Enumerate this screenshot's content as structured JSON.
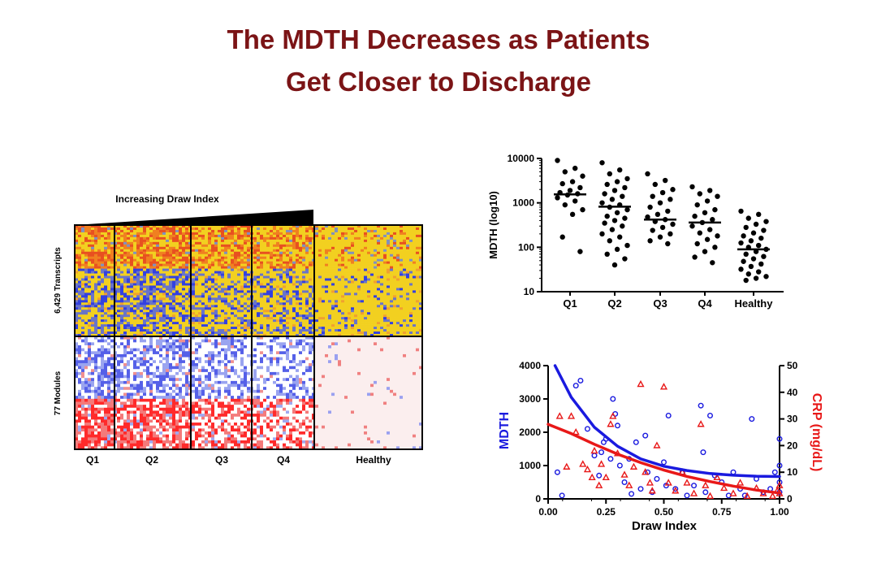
{
  "slide": {
    "title_line1": "The MDTH Decreases as Patients",
    "title_line2": "Get Closer to Discharge",
    "title_color": "#7b1416"
  },
  "heatmap": {
    "header": "Increasing Draw Index",
    "row_groups": [
      "6,429 Transcripts",
      "77 Modules"
    ],
    "column_groups": [
      "Q1",
      "Q2",
      "Q3",
      "Q4",
      "Healthy"
    ],
    "colors": {
      "high": "#ff2a2a",
      "low": "#3340e0",
      "mid_transcripts": "#f2d020",
      "mid_modules": "#ffffff"
    }
  },
  "chart_data": [
    {
      "type": "scatter",
      "ylabel": "MDTH (log10)",
      "yscale": "log",
      "ylim": [
        10,
        10000
      ],
      "yticks": [
        "10",
        "100",
        "1000",
        "10000"
      ],
      "categories": [
        "Q1",
        "Q2",
        "Q3",
        "Q4",
        "Healthy"
      ],
      "medians": [
        1550,
        820,
        420,
        360,
        90
      ],
      "points": [
        [
          9000,
          6000,
          5000,
          4000,
          3000,
          2700,
          2200,
          1900,
          1700,
          1600,
          1500,
          1300,
          1100,
          900,
          700,
          550,
          170,
          80
        ],
        [
          8000,
          5500,
          4500,
          3500,
          3000,
          2600,
          2200,
          1900,
          1600,
          1400,
          1200,
          1000,
          900,
          800,
          700,
          600,
          500,
          450,
          400,
          350,
          300,
          250,
          200,
          170,
          140,
          110,
          90,
          70,
          55,
          40
        ],
        [
          4500,
          3200,
          2600,
          2000,
          1700,
          1400,
          1200,
          1000,
          800,
          650,
          550,
          480,
          420,
          380,
          330,
          280,
          240,
          200,
          170,
          140,
          120
        ],
        [
          2300,
          1900,
          1600,
          1400,
          1100,
          900,
          700,
          600,
          500,
          420,
          360,
          300,
          250,
          210,
          180,
          150,
          120,
          100,
          80,
          60,
          45
        ],
        [
          650,
          550,
          450,
          380,
          330,
          280,
          240,
          210,
          180,
          160,
          140,
          125,
          110,
          100,
          90,
          80,
          70,
          62,
          55,
          48,
          42,
          37,
          32,
          28,
          25,
          22,
          20,
          18
        ]
      ],
      "color": "#000000"
    },
    {
      "type": "scatter",
      "xlabel": "Draw Index",
      "ylabel": "MDTH",
      "ylabel_right": "CRP (mg/dL)",
      "xlim": [
        0,
        1
      ],
      "ylim": [
        0,
        4000
      ],
      "ylim_right": [
        0,
        50
      ],
      "xticks": [
        "0.00",
        "0.25",
        "0.50",
        "0.75",
        "1.00"
      ],
      "yticks": [
        "0",
        "1000",
        "2000",
        "3000",
        "4000"
      ],
      "yticks_right": [
        "0",
        "10",
        "20",
        "30",
        "40",
        "50"
      ],
      "series": [
        {
          "name": "MDTH",
          "color": "#1a1adf",
          "marker": "circle",
          "points": [
            [
              0.04,
              800
            ],
            [
              0.06,
              100
            ],
            [
              0.12,
              3400
            ],
            [
              0.14,
              3550
            ],
            [
              0.17,
              2100
            ],
            [
              0.2,
              1300
            ],
            [
              0.22,
              700
            ],
            [
              0.23,
              1400
            ],
            [
              0.24,
              1700
            ],
            [
              0.25,
              1800
            ],
            [
              0.27,
              1200
            ],
            [
              0.28,
              3000
            ],
            [
              0.29,
              2550
            ],
            [
              0.3,
              2200
            ],
            [
              0.31,
              1000
            ],
            [
              0.33,
              500
            ],
            [
              0.35,
              1200
            ],
            [
              0.36,
              150
            ],
            [
              0.38,
              1700
            ],
            [
              0.4,
              300
            ],
            [
              0.42,
              1900
            ],
            [
              0.43,
              800
            ],
            [
              0.45,
              200
            ],
            [
              0.47,
              600
            ],
            [
              0.5,
              1100
            ],
            [
              0.51,
              400
            ],
            [
              0.52,
              2500
            ],
            [
              0.55,
              300
            ],
            [
              0.58,
              800
            ],
            [
              0.6,
              100
            ],
            [
              0.63,
              400
            ],
            [
              0.66,
              2800
            ],
            [
              0.67,
              1400
            ],
            [
              0.68,
              200
            ],
            [
              0.7,
              2500
            ],
            [
              0.72,
              700
            ],
            [
              0.75,
              500
            ],
            [
              0.78,
              100
            ],
            [
              0.8,
              800
            ],
            [
              0.83,
              300
            ],
            [
              0.85,
              100
            ],
            [
              0.88,
              2400
            ],
            [
              0.9,
              600
            ],
            [
              0.93,
              200
            ],
            [
              0.96,
              300
            ],
            [
              0.98,
              800
            ],
            [
              1.0,
              1800
            ],
            [
              1.0,
              1000
            ],
            [
              1.0,
              500
            ],
            [
              1.0,
              200
            ]
          ]
        },
        {
          "name": "CRP (mg/dL)",
          "color": "#e81818",
          "marker": "triangle",
          "axis": "right",
          "points": [
            [
              0.05,
              31
            ],
            [
              0.08,
              12
            ],
            [
              0.1,
              31
            ],
            [
              0.12,
              25
            ],
            [
              0.15,
              13
            ],
            [
              0.17,
              11
            ],
            [
              0.19,
              8
            ],
            [
              0.2,
              18
            ],
            [
              0.22,
              5
            ],
            [
              0.23,
              13
            ],
            [
              0.25,
              8
            ],
            [
              0.27,
              28
            ],
            [
              0.28,
              31
            ],
            [
              0.3,
              17
            ],
            [
              0.33,
              9
            ],
            [
              0.35,
              5
            ],
            [
              0.37,
              12
            ],
            [
              0.4,
              43
            ],
            [
              0.42,
              10
            ],
            [
              0.44,
              6
            ],
            [
              0.45,
              3
            ],
            [
              0.47,
              20
            ],
            [
              0.5,
              42
            ],
            [
              0.52,
              6
            ],
            [
              0.55,
              3
            ],
            [
              0.58,
              10
            ],
            [
              0.6,
              6
            ],
            [
              0.63,
              2
            ],
            [
              0.66,
              28
            ],
            [
              0.68,
              5
            ],
            [
              0.7,
              1
            ],
            [
              0.73,
              8
            ],
            [
              0.76,
              4
            ],
            [
              0.8,
              2
            ],
            [
              0.83,
              6
            ],
            [
              0.86,
              1
            ],
            [
              0.9,
              4
            ],
            [
              0.93,
              2
            ],
            [
              0.97,
              1
            ],
            [
              0.99,
              3
            ],
            [
              1.0,
              5
            ],
            [
              1.0,
              2
            ]
          ]
        }
      ],
      "fits": [
        {
          "name": "MDTH",
          "color": "#1a1adf",
          "axis": "left",
          "points": [
            [
              0.03,
              4000
            ],
            [
              0.1,
              3050
            ],
            [
              0.2,
              2150
            ],
            [
              0.3,
              1580
            ],
            [
              0.4,
              1200
            ],
            [
              0.5,
              980
            ],
            [
              0.6,
              850
            ],
            [
              0.7,
              760
            ],
            [
              0.8,
              710
            ],
            [
              0.9,
              680
            ],
            [
              1.0,
              670
            ]
          ]
        },
        {
          "name": "CRP (mg/dL)",
          "color": "#e81818",
          "axis": "right",
          "points": [
            [
              0.0,
              28
            ],
            [
              0.1,
              24.5
            ],
            [
              0.2,
              20.5
            ],
            [
              0.3,
              16.8
            ],
            [
              0.4,
              13.6
            ],
            [
              0.5,
              10.8
            ],
            [
              0.6,
              8.4
            ],
            [
              0.7,
              6.5
            ],
            [
              0.8,
              4.8
            ],
            [
              0.9,
              3.3
            ],
            [
              1.0,
              2.2
            ]
          ]
        }
      ]
    }
  ]
}
